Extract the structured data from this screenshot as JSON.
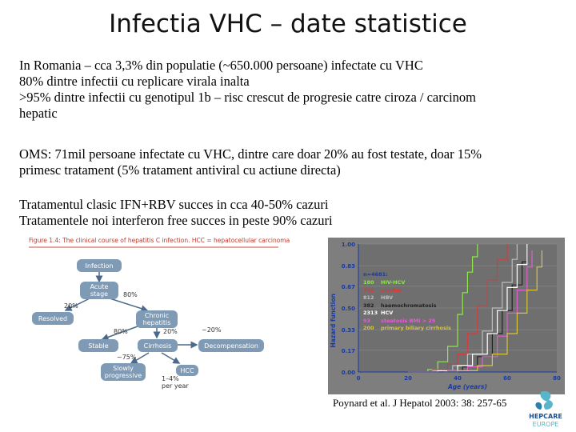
{
  "title": "Infectia VHC – date statistice",
  "paragraph1": {
    "line1": "In Romania – cca 3,3% din populatie (~650.000 persoane) infectate cu VHC",
    "line2": "80% dintre infectii cu replicare virala inalta",
    "line3": ">95% dintre infectii cu genotipul 1b – risc crescut de progresie catre ciroza / carcinom",
    "line4": "hepatic"
  },
  "paragraph2": {
    "line1": "OMS: 71mil persoane infectate cu VHC, dintre care doar 20% au fost testate, doar 15%",
    "line2": "primesc tratament (5% tratament antiviral cu actiune directa)"
  },
  "paragraph3": {
    "line1": "Tratamentul clasic IFN+RBV succes in cca 40-50% cazuri",
    "line2": "Tratamentele noi interferon free succes in peste 90% cazuri"
  },
  "figure_left": {
    "caption": "Figure 1.4: The clinical course of hepatitis C infection. HCC = hepatocellular carcinoma",
    "nodes": {
      "infection": "Infection",
      "acute": "Acute\nstage",
      "resolved": "Resolved",
      "chronic": "Chronic\nhepatitis",
      "stable": "Stable",
      "cirrhosis": "Cirrhosis",
      "decompensation": "Decompensation",
      "slowly": "Slowly\nprogressive",
      "hcc": "HCC"
    },
    "edge_labels": {
      "e80a": "80%",
      "e20a": "20%",
      "e80b": "80%",
      "e20b": "20%",
      "e20c": "~20%",
      "e75": "~75%",
      "e14": "1–4%\nper year"
    }
  },
  "chart_data": {
    "type": "line",
    "title": "",
    "xlabel": "Age (years)",
    "ylabel": "Hazard function",
    "xlim": [
      0,
      80
    ],
    "ylim": [
      0,
      1.0
    ],
    "x_ticks": [
      "0",
      "20",
      "40",
      "60",
      "80"
    ],
    "y_ticks": [
      "0.00",
      "0.17",
      "0.33",
      "0.50",
      "0.67",
      "0.83",
      "1.00"
    ],
    "legend_header": "n=4681:",
    "series": [
      {
        "name": "HIV-HCV",
        "count": "180",
        "color": "#8fe84a",
        "x": [
          20,
          28,
          32,
          36,
          40,
          42,
          44,
          46,
          48
        ],
        "y": [
          0,
          0.02,
          0.08,
          0.2,
          0.45,
          0.62,
          0.78,
          0.9,
          1.0
        ]
      },
      {
        "name": "alcohol",
        "count": "701",
        "color": "#d63b3b",
        "x": [
          20,
          30,
          36,
          40,
          44,
          48,
          52,
          56,
          60
        ],
        "y": [
          0,
          0.02,
          0.06,
          0.14,
          0.3,
          0.52,
          0.72,
          0.88,
          1.0
        ]
      },
      {
        "name": "HBV",
        "count": "812",
        "color": "#bdbdbd",
        "x": [
          20,
          30,
          38,
          44,
          50,
          54,
          58,
          62,
          64
        ],
        "y": [
          0,
          0.01,
          0.05,
          0.14,
          0.32,
          0.5,
          0.7,
          0.88,
          1.0
        ]
      },
      {
        "name": "haemochromatosis",
        "count": "382",
        "color": "#222222",
        "x": [
          20,
          34,
          42,
          48,
          54,
          58,
          62,
          66,
          68
        ],
        "y": [
          0,
          0.01,
          0.04,
          0.12,
          0.3,
          0.48,
          0.68,
          0.86,
          0.98
        ]
      },
      {
        "name": "HCV",
        "count": "2313",
        "color": "#ffffff",
        "x": [
          20,
          32,
          40,
          46,
          52,
          56,
          60,
          64,
          68
        ],
        "y": [
          0,
          0.01,
          0.05,
          0.14,
          0.3,
          0.48,
          0.66,
          0.84,
          1.0
        ]
      },
      {
        "name": "steatosis BMI > 25",
        "count": "93",
        "color": "#e05fd0",
        "x": [
          20,
          36,
          44,
          50,
          56,
          60,
          64,
          68,
          70
        ],
        "y": [
          0,
          0.01,
          0.04,
          0.12,
          0.28,
          0.46,
          0.64,
          0.82,
          0.95
        ]
      },
      {
        "name": "primary biliary cirrhosis",
        "count": "200",
        "color": "#d9c43a",
        "x": [
          20,
          40,
          48,
          54,
          60,
          64,
          68,
          72,
          74
        ],
        "y": [
          0,
          0.01,
          0.05,
          0.14,
          0.3,
          0.46,
          0.64,
          0.82,
          0.95
        ]
      }
    ]
  },
  "citation": "Poynard et al. J Hepatol 2003: 38: 257-65",
  "logo": {
    "line1": "HEPCARE",
    "line2": "EUROPE"
  }
}
